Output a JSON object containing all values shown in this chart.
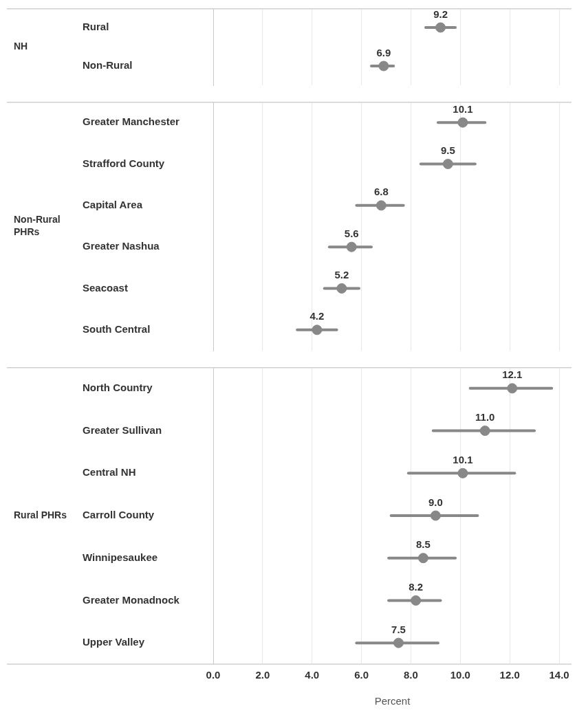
{
  "chart_data": [
    {
      "type": "scatter",
      "orientation": "horizontal",
      "ylabel": "NH",
      "tick_labels": "y",
      "categories": [
        "Rural",
        "Non-Rural"
      ],
      "series": [
        {
          "color": "#888888",
          "values": [
            9.2,
            6.9
          ],
          "value_labels": [
            "9.2",
            "6.9"
          ],
          "errors": [
            [
              8.6,
              9.8
            ],
            [
              6.4,
              7.3
            ]
          ]
        }
      ],
      "xlim": [
        0,
        14.5
      ],
      "xticks": [
        0,
        2,
        4,
        6,
        8,
        10,
        12,
        14
      ],
      "grid": "x",
      "marker": "circle"
    },
    {
      "type": "scatter",
      "orientation": "horizontal",
      "ylabel": "Non-Rural PHRs",
      "tick_labels": "y",
      "categories": [
        "Greater Manchester",
        "Strafford County",
        "Capital Area",
        "Greater Nashua",
        "Seacoast",
        "South Central"
      ],
      "series": [
        {
          "color": "#888888",
          "values": [
            10.1,
            9.5,
            6.8,
            5.6,
            5.2,
            4.2
          ],
          "value_labels": [
            "10.1",
            "9.5",
            "6.8",
            "5.6",
            "5.2",
            "4.2"
          ],
          "errors": [
            [
              9.1,
              11.0
            ],
            [
              8.4,
              10.6
            ],
            [
              5.8,
              7.7
            ],
            [
              4.7,
              6.4
            ],
            [
              4.5,
              5.9
            ],
            [
              3.4,
              5.0
            ]
          ]
        }
      ],
      "xlim": [
        0,
        14.5
      ],
      "xticks": [
        0,
        2,
        4,
        6,
        8,
        10,
        12,
        14
      ],
      "grid": "x",
      "marker": "circle"
    },
    {
      "type": "scatter",
      "orientation": "horizontal",
      "ylabel": "Rural PHRs",
      "xlabel": "Percent",
      "categories": [
        "North Country",
        "Greater Sullivan",
        "Central NH",
        "Carroll County",
        "Winnipesaukee",
        "Greater Monadnock",
        "Upper Valley"
      ],
      "series": [
        {
          "color": "#888888",
          "values": [
            12.1,
            11.0,
            10.1,
            9.0,
            8.5,
            8.2,
            7.5
          ],
          "value_labels": [
            "12.1",
            "11.0",
            "10.1",
            "9.0",
            "8.5",
            "8.2",
            "7.5"
          ],
          "errors": [
            [
              10.4,
              13.7
            ],
            [
              8.9,
              13.0
            ],
            [
              7.9,
              12.2
            ],
            [
              7.2,
              10.7
            ],
            [
              7.1,
              9.8
            ],
            [
              7.1,
              9.2
            ],
            [
              5.8,
              9.1
            ]
          ]
        }
      ],
      "xlim": [
        0,
        14.5
      ],
      "xticks": [
        {
          "value": 0,
          "label": "0.0"
        },
        {
          "value": 2,
          "label": "2.0"
        },
        {
          "value": 4,
          "label": "4.0"
        },
        {
          "value": 6,
          "label": "6.0"
        },
        {
          "value": 8,
          "label": "8.0"
        },
        {
          "value": 10,
          "label": "10.0"
        },
        {
          "value": 12,
          "label": "12.0"
        },
        {
          "value": 14,
          "label": "14.0"
        }
      ],
      "grid": "x",
      "marker": "circle"
    }
  ]
}
